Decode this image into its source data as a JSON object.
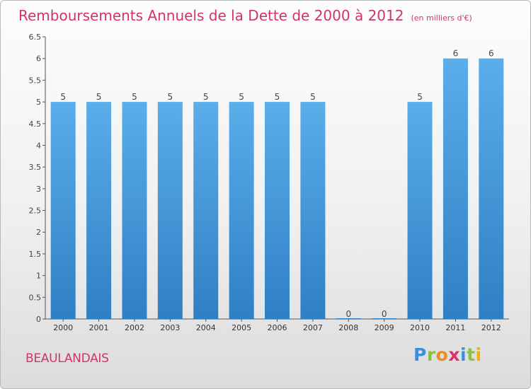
{
  "chart_data": {
    "type": "bar",
    "title": "Remboursements Annuels de la Dette de 2000 à 2012",
    "unit_label": "(en milliers d'€)",
    "categories": [
      "2000",
      "2001",
      "2002",
      "2003",
      "2004",
      "2005",
      "2006",
      "2007",
      "2008",
      "2009",
      "2010",
      "2011",
      "2012"
    ],
    "values": [
      5,
      5,
      5,
      5,
      5,
      5,
      5,
      5,
      0,
      0,
      5,
      6,
      6
    ],
    "labels": [
      "5",
      "5",
      "5",
      "5",
      "5",
      "5",
      "5",
      "5",
      "0",
      "0",
      "5",
      "6",
      "6"
    ],
    "ylim": [
      0,
      6.5
    ],
    "yticks": [
      0,
      0.5,
      1,
      1.5,
      2,
      2.5,
      3,
      3.5,
      4,
      4.5,
      5,
      5.5,
      6,
      6.5
    ],
    "ytick_labels": [
      "0",
      "0.5",
      "1",
      "1.5",
      "2",
      "2.5",
      "3",
      "3.5",
      "4",
      "4.5",
      "5",
      "5.5",
      "6",
      "6.5"
    ],
    "xlabel": "",
    "ylabel": "",
    "grid": false,
    "bar_color": "#4e9ee0"
  },
  "commune": "BEAULANDAIS",
  "logo": {
    "text": "Proxiti",
    "parts": [
      "P",
      "r",
      "o",
      "x",
      "i",
      "t",
      "i"
    ]
  }
}
